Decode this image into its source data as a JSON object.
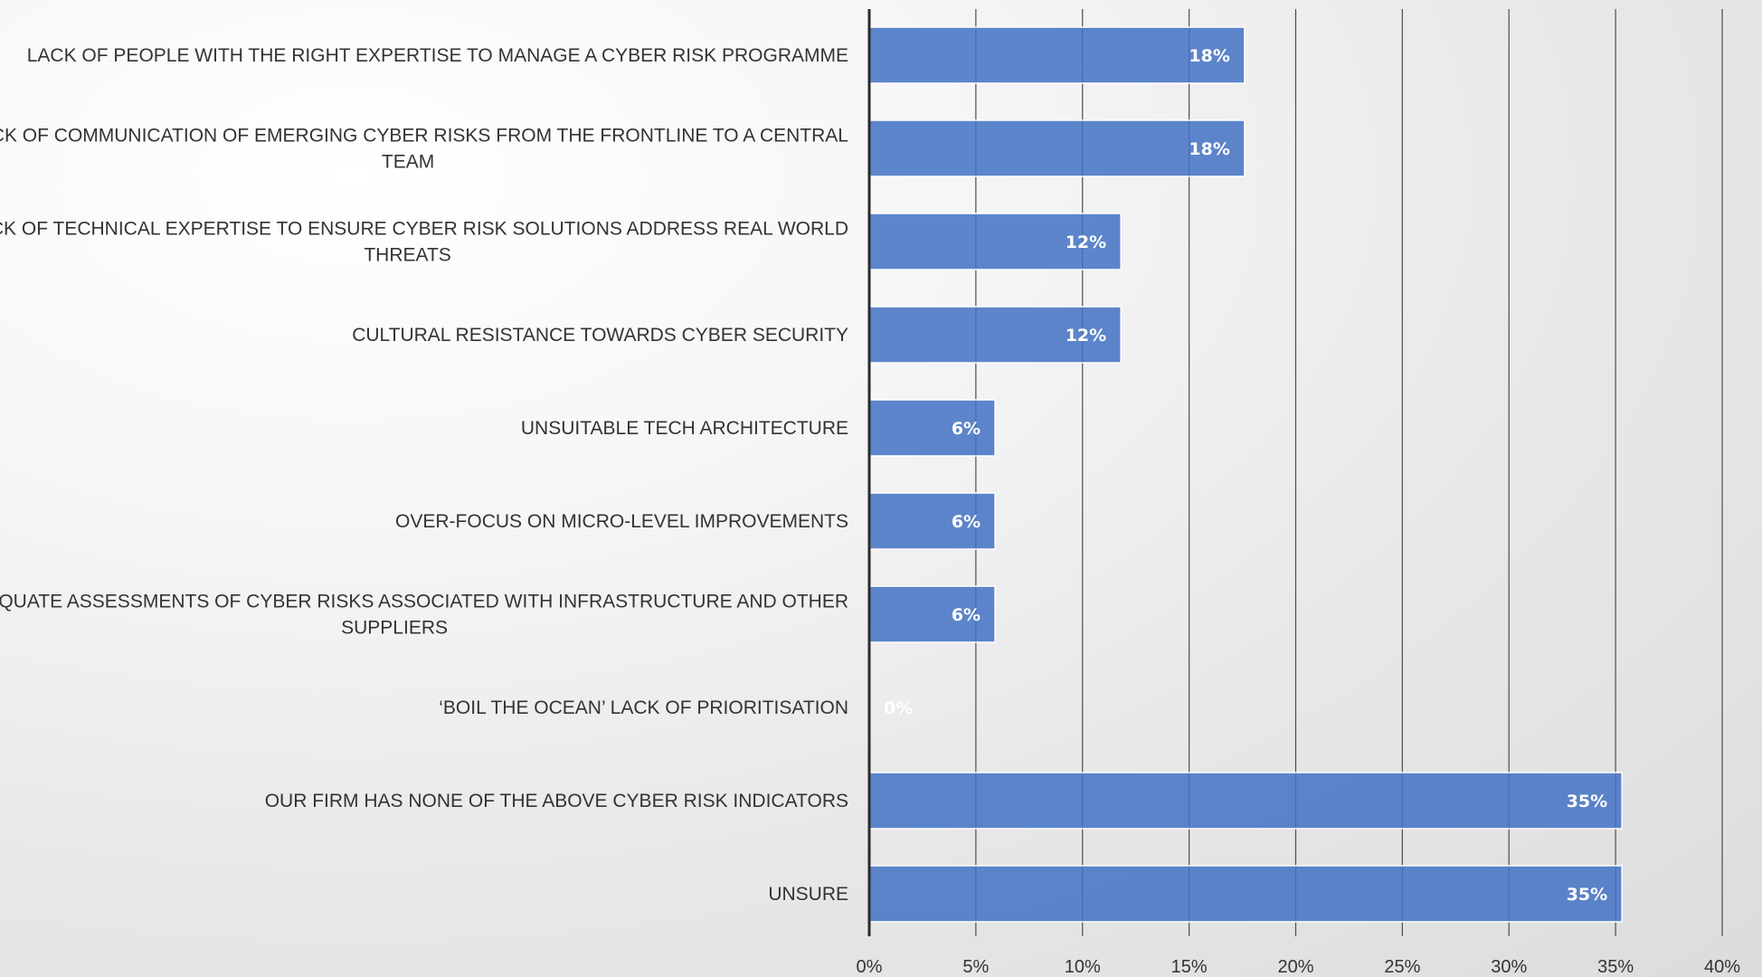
{
  "colors": {
    "bar": "#4472C4",
    "bar_edge": "#ffffff",
    "gridline": "#4d4d4d",
    "axis": "#2b2b2b",
    "label_text": "#333333",
    "data_label": "#ffffff"
  },
  "chart_data": {
    "type": "bar",
    "orientation": "horizontal",
    "title": "",
    "xlabel": "",
    "ylabel": "",
    "xlim": [
      0,
      40
    ],
    "tick_step": 5,
    "tick_format": "percent",
    "grid": true,
    "legend": "none",
    "categories": [
      [
        "LACK OF PEOPLE WITH THE RIGHT EXPERTISE TO MANAGE A CYBER RISK PROGRAMME"
      ],
      [
        "LACK OF COMMUNICATION OF EMERGING CYBER RISKS FROM THE FRONTLINE TO A CENTRAL",
        "TEAM"
      ],
      [
        "LACK OF TECHNICAL EXPERTISE TO ENSURE CYBER RISK SOLUTIONS ADDRESS REAL WORLD",
        "THREATS"
      ],
      [
        "CULTURAL RESISTANCE TOWARDS CYBER SECURITY"
      ],
      [
        "UNSUITABLE TECH ARCHITECTURE"
      ],
      [
        "OVER-FOCUS ON MICRO-LEVEL IMPROVEMENTS"
      ],
      [
        "INADEQUATE ASSESSMENTS OF CYBER RISKS ASSOCIATED WITH INFRASTRUCTURE AND OTHER",
        "SUPPLIERS"
      ],
      [
        "‘BOIL THE OCEAN’ LACK OF PRIORITISATION"
      ],
      [
        "OUR FIRM HAS NONE OF THE ABOVE CYBER RISK INDICATORS"
      ],
      [
        "UNSURE"
      ]
    ],
    "values": [
      17.6,
      17.6,
      11.8,
      11.8,
      5.9,
      5.9,
      5.9,
      0,
      35.3,
      35.3
    ],
    "data_labels": [
      "18%",
      "18%",
      "12%",
      "12%",
      "6%",
      "6%",
      "6%",
      "0%",
      "35%",
      "35%"
    ]
  }
}
